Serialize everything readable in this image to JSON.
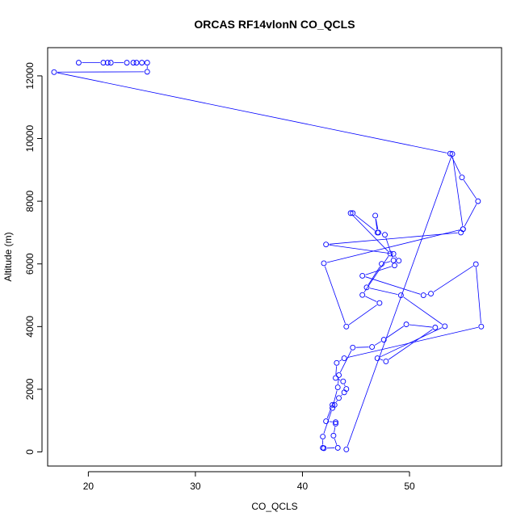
{
  "chart_data": {
    "type": "line",
    "title": "ORCAS RF14vlonN CO_QCLS",
    "xlabel": "CO_QCLS",
    "ylabel": "Altitude (m)",
    "xlim": [
      16.2,
      58.6
    ],
    "ylim": [
      -450,
      12900
    ],
    "xticks": [
      20,
      30,
      40,
      50
    ],
    "yticks": [
      0,
      2000,
      4000,
      6000,
      8000,
      10000,
      12000
    ],
    "grid": false,
    "marker": "open-circle",
    "series": [
      {
        "color": "#0000ff",
        "points": [
          [
            19.1,
            12420
          ],
          [
            21.4,
            12420
          ],
          [
            21.8,
            12420
          ],
          [
            22.1,
            12420
          ],
          [
            23.6,
            12420
          ],
          [
            24.2,
            12420
          ],
          [
            24.5,
            12420
          ],
          [
            25.0,
            12420
          ],
          [
            25.5,
            12420
          ],
          [
            25.5,
            12130
          ],
          [
            16.8,
            12120
          ],
          [
            53.8,
            9520
          ],
          [
            54.9,
            8760
          ],
          [
            56.4,
            8000
          ],
          [
            55.0,
            7110
          ],
          [
            54.8,
            7000
          ],
          [
            42.2,
            6620
          ],
          [
            48.5,
            6320
          ],
          [
            49.0,
            6100
          ],
          [
            48.6,
            5950
          ],
          [
            45.6,
            5620
          ],
          [
            51.3,
            5000
          ],
          [
            52.0,
            5050
          ],
          [
            56.2,
            5990
          ],
          [
            56.7,
            4000
          ],
          [
            43.9,
            2990
          ],
          [
            43.2,
            2840
          ],
          [
            43.1,
            2360
          ],
          [
            43.8,
            2250
          ],
          [
            44.1,
            2010
          ],
          [
            43.9,
            1900
          ],
          [
            43.4,
            1720
          ],
          [
            43.0,
            1500
          ],
          [
            42.8,
            1500
          ],
          [
            42.2,
            980
          ],
          [
            43.1,
            950
          ],
          [
            43.1,
            900
          ],
          [
            42.9,
            520
          ],
          [
            43.3,
            130
          ],
          [
            42.0,
            120
          ],
          [
            41.9,
            130
          ],
          [
            41.9,
            490
          ],
          [
            42.8,
            1400
          ],
          [
            43.3,
            2060
          ],
          [
            43.4,
            2450
          ],
          [
            44.7,
            3330
          ],
          [
            46.5,
            3350
          ],
          [
            47.6,
            3580
          ],
          [
            49.7,
            4070
          ],
          [
            52.4,
            3970
          ],
          [
            47.8,
            2890
          ],
          [
            47.0,
            2990
          ],
          [
            53.3,
            4010
          ],
          [
            49.2,
            5000
          ],
          [
            46.0,
            5250
          ],
          [
            47.4,
            6000
          ],
          [
            48.5,
            6110
          ],
          [
            47.7,
            6930
          ],
          [
            47.1,
            7000
          ],
          [
            46.8,
            7540
          ],
          [
            47.0,
            7000
          ],
          [
            44.7,
            7620
          ],
          [
            44.5,
            7620
          ],
          [
            48.2,
            6330
          ],
          [
            45.6,
            5010
          ],
          [
            47.2,
            4750
          ],
          [
            44.1,
            4000
          ],
          [
            42.0,
            6020
          ],
          [
            55.0,
            7110
          ],
          [
            54.0,
            9510
          ],
          [
            44.1,
            80
          ]
        ]
      }
    ]
  }
}
